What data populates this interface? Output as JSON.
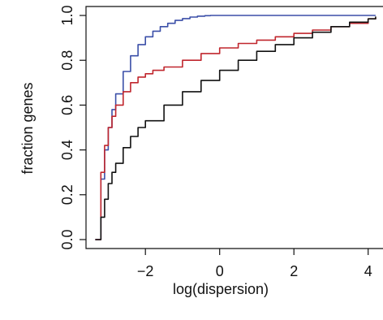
{
  "chart_data": {
    "type": "line",
    "title": "",
    "xlabel": "log(dispersion)",
    "ylabel": "fraction genes",
    "xlim": [
      -3.6,
      4.4
    ],
    "ylim": [
      -0.04,
      1.04
    ],
    "x_ticks": [
      "-2",
      "0",
      "2",
      "4"
    ],
    "y_ticks": [
      "0.0",
      "0.2",
      "0.4",
      "0.6",
      "0.8",
      "1.0"
    ],
    "grid": false,
    "legend": "none",
    "series": [
      {
        "color": "#3b4fa8",
        "x": [
          -3.35,
          -3.2,
          -3.1,
          -3.0,
          -2.9,
          -2.8,
          -2.6,
          -2.4,
          -2.2,
          -2.0,
          -1.8,
          -1.6,
          -1.4,
          -1.2,
          -1.0,
          -0.8,
          -0.6,
          -0.4,
          -0.25,
          0.0,
          1.0,
          2.0,
          3.0,
          4.0,
          4.2
        ],
        "y": [
          0.0,
          0.27,
          0.4,
          0.5,
          0.58,
          0.65,
          0.75,
          0.82,
          0.87,
          0.905,
          0.93,
          0.95,
          0.965,
          0.978,
          0.986,
          0.993,
          0.997,
          0.999,
          1.0,
          1.0,
          1.0,
          1.0,
          1.0,
          1.0,
          1.0
        ]
      },
      {
        "color": "#c0262d",
        "x": [
          -3.35,
          -3.2,
          -3.1,
          -3.0,
          -2.9,
          -2.8,
          -2.6,
          -2.4,
          -2.2,
          -2.0,
          -1.8,
          -1.5,
          -1.0,
          -0.5,
          0.0,
          0.5,
          1.0,
          1.5,
          2.0,
          2.5,
          3.0,
          3.5,
          4.0,
          4.2
        ],
        "y": [
          0.0,
          0.3,
          0.42,
          0.5,
          0.55,
          0.6,
          0.66,
          0.7,
          0.725,
          0.74,
          0.755,
          0.77,
          0.8,
          0.83,
          0.855,
          0.875,
          0.89,
          0.905,
          0.92,
          0.935,
          0.95,
          0.965,
          0.985,
          0.99
        ]
      },
      {
        "color": "#111111",
        "x": [
          -3.35,
          -3.2,
          -3.1,
          -3.0,
          -2.9,
          -2.8,
          -2.6,
          -2.4,
          -2.2,
          -2.0,
          -1.5,
          -1.0,
          -0.5,
          0.0,
          0.5,
          1.0,
          1.5,
          2.0,
          2.5,
          3.0,
          3.5,
          4.0,
          4.2
        ],
        "y": [
          0.0,
          0.1,
          0.18,
          0.25,
          0.3,
          0.34,
          0.41,
          0.46,
          0.5,
          0.53,
          0.6,
          0.66,
          0.71,
          0.755,
          0.8,
          0.84,
          0.87,
          0.9,
          0.925,
          0.95,
          0.97,
          0.985,
          0.995
        ]
      }
    ]
  }
}
